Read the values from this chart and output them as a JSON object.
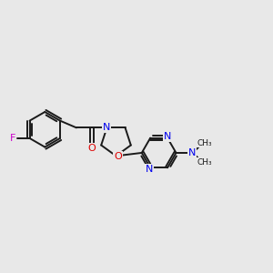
{
  "bg_color": "#e8e8e8",
  "bond_color": "#1a1a1a",
  "N_color": "#0000ee",
  "O_color": "#dd0000",
  "F_color": "#cc00cc",
  "font_size": 8.0,
  "bond_width": 1.4,
  "figsize": [
    3.0,
    3.0
  ],
  "dpi": 100,
  "xlim": [
    -3.2,
    3.8
  ],
  "ylim": [
    -1.8,
    1.8
  ]
}
